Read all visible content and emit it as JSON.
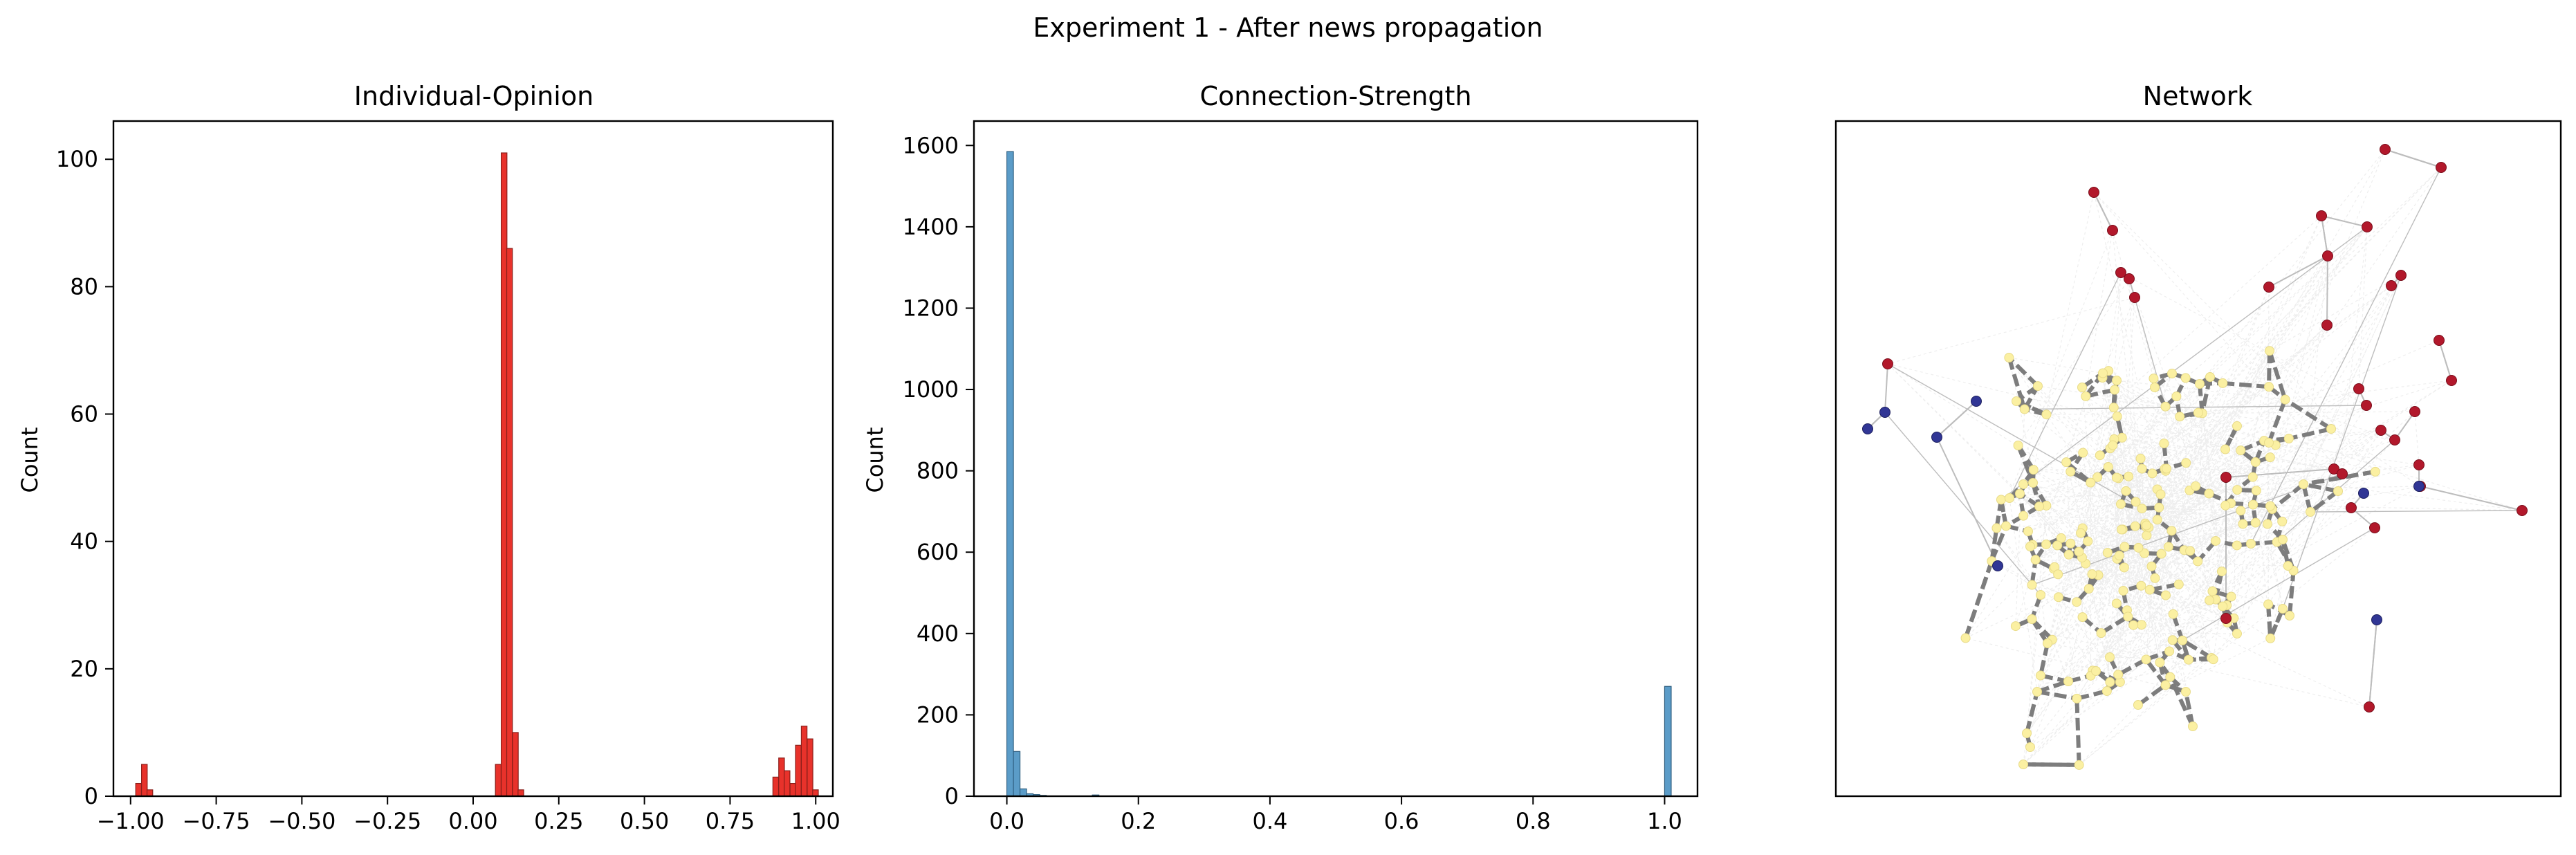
{
  "figure": {
    "suptitle": "Experiment 1 - After news propagation"
  },
  "chart_data": [
    {
      "type": "histogram",
      "title": "Individual-Opinion",
      "xlabel": "",
      "ylabel": "Count",
      "xlim": [
        -1.05,
        1.05
      ],
      "ylim": [
        0,
        106
      ],
      "xticks": [
        -1.0,
        -0.75,
        -0.5,
        -0.25,
        0.0,
        0.25,
        0.5,
        0.75,
        1.0
      ],
      "xtick_labels": [
        "−1.00",
        "−0.75",
        "−0.50",
        "−0.25",
        "0.00",
        "0.25",
        "0.50",
        "0.75",
        "1.00"
      ],
      "yticks": [
        0,
        20,
        40,
        60,
        80,
        100
      ],
      "ytick_labels": [
        "0",
        "20",
        "40",
        "60",
        "80",
        "100"
      ],
      "bin_width": 0.0166,
      "bar_color": "#e8322b",
      "edge_color": "#8a1f1a",
      "bars": [
        {
          "x": -0.985,
          "v": 2
        },
        {
          "x": -0.968,
          "v": 5
        },
        {
          "x": -0.952,
          "v": 1
        },
        {
          "x": 0.065,
          "v": 5
        },
        {
          "x": 0.082,
          "v": 101
        },
        {
          "x": 0.098,
          "v": 86
        },
        {
          "x": 0.115,
          "v": 10
        },
        {
          "x": 0.131,
          "v": 1
        },
        {
          "x": 0.875,
          "v": 3
        },
        {
          "x": 0.892,
          "v": 6
        },
        {
          "x": 0.908,
          "v": 4
        },
        {
          "x": 0.925,
          "v": 2
        },
        {
          "x": 0.941,
          "v": 8
        },
        {
          "x": 0.958,
          "v": 11
        },
        {
          "x": 0.975,
          "v": 9
        },
        {
          "x": 0.991,
          "v": 1
        }
      ]
    },
    {
      "type": "histogram",
      "title": "Connection-Strength",
      "xlabel": "",
      "ylabel": "Count",
      "xlim": [
        -0.05,
        1.05
      ],
      "ylim": [
        0,
        1660
      ],
      "xticks": [
        0.0,
        0.2,
        0.4,
        0.6,
        0.8,
        1.0
      ],
      "xtick_labels": [
        "0.0",
        "0.2",
        "0.4",
        "0.6",
        "0.8",
        "1.0"
      ],
      "yticks": [
        0,
        200,
        400,
        600,
        800,
        1000,
        1200,
        1400,
        1600
      ],
      "ytick_labels": [
        "0",
        "200",
        "400",
        "600",
        "800",
        "1000",
        "1200",
        "1400",
        "1600"
      ],
      "bin_width": 0.01,
      "bar_color": "#5b9cc8",
      "edge_color": "#2f5f80",
      "bars": [
        {
          "x": 0.0,
          "v": 1585
        },
        {
          "x": 0.01,
          "v": 110
        },
        {
          "x": 0.02,
          "v": 18
        },
        {
          "x": 0.03,
          "v": 6
        },
        {
          "x": 0.04,
          "v": 4
        },
        {
          "x": 0.05,
          "v": 2
        },
        {
          "x": 0.13,
          "v": 3
        },
        {
          "x": 1.0,
          "v": 270
        }
      ]
    },
    {
      "type": "network",
      "title": "Network",
      "node_colors": {
        "positive": "#b2182b",
        "neutral": "#fbf0a2",
        "negative": "#313695"
      },
      "edge_colors": {
        "strong": "#7d7d7d",
        "weak": "#bdbdbd",
        "faint": "#eeeeee"
      }
    }
  ]
}
